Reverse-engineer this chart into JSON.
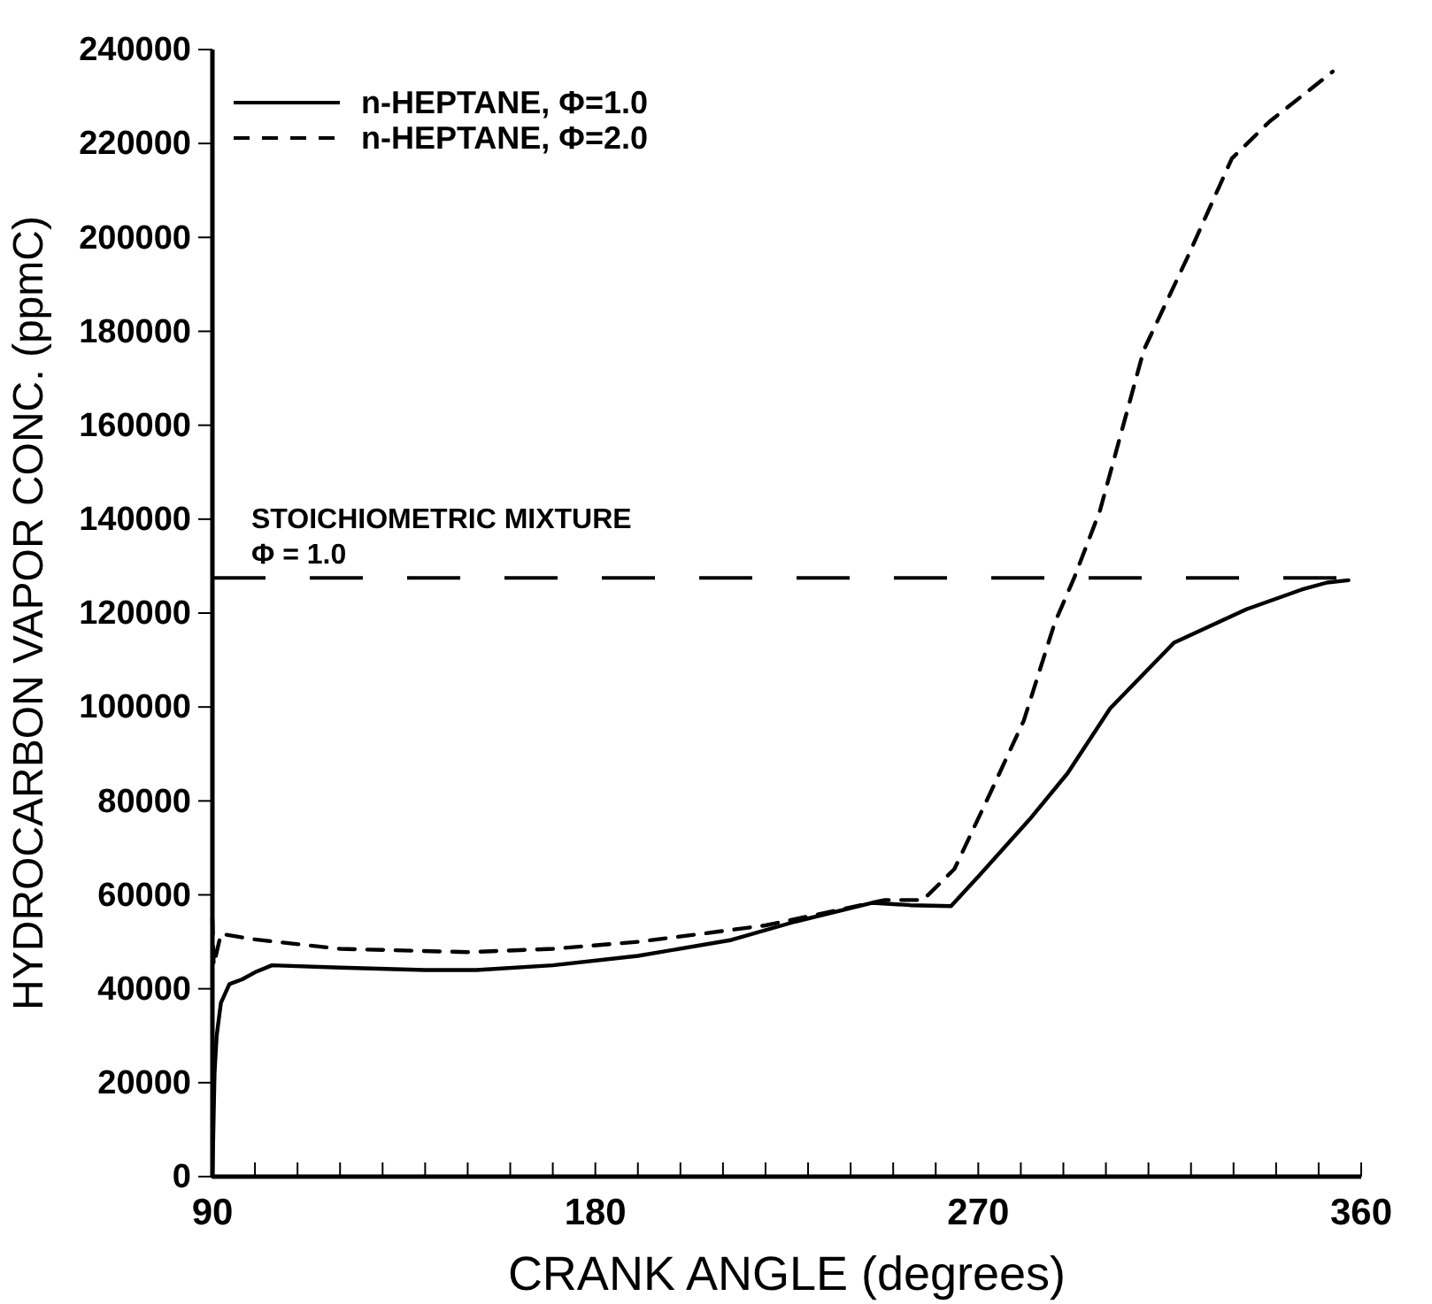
{
  "chart_data": {
    "type": "line",
    "xlabel": "CRANK ANGLE (degrees)",
    "ylabel": "HYDROCARBON VAPOR CONC. (ppmC)",
    "xlim": [
      90,
      360
    ],
    "xticks": [
      90,
      {
        "value": 100,
        "label": null
      },
      {
        "value": 110,
        "label": null
      },
      {
        "value": 120,
        "label": null
      },
      {
        "value": 130,
        "label": null
      },
      {
        "value": 140,
        "label": null
      },
      {
        "value": 150,
        "label": null
      },
      {
        "value": 160,
        "label": null
      },
      {
        "value": 170,
        "label": null
      },
      180,
      {
        "value": 190,
        "label": null
      },
      {
        "value": 200,
        "label": null
      },
      {
        "value": 210,
        "label": null
      },
      {
        "value": 220,
        "label": null
      },
      {
        "value": 230,
        "label": null
      },
      {
        "value": 240,
        "label": null
      },
      {
        "value": 250,
        "label": null
      },
      {
        "value": 260,
        "label": null
      },
      270,
      {
        "value": 280,
        "label": null
      },
      {
        "value": 290,
        "label": null
      },
      {
        "value": 300,
        "label": null
      },
      {
        "value": 310,
        "label": null
      },
      {
        "value": 320,
        "label": null
      },
      {
        "value": 330,
        "label": null
      },
      {
        "value": 340,
        "label": null
      },
      {
        "value": 350,
        "label": null
      },
      360
    ],
    "ylim": [
      0,
      240000
    ],
    "yticks": [
      0,
      20000,
      40000,
      60000,
      80000,
      100000,
      120000,
      140000,
      160000,
      180000,
      200000,
      220000,
      240000
    ],
    "legend": "top left",
    "grid": false,
    "series": [
      {
        "name": "n-HEPTANE, Φ=1.0",
        "color": "#000000",
        "line_style": "solid",
        "x": [
          90,
          90.5,
          91,
          92,
          94,
          97,
          100,
          104,
          120,
          140,
          152,
          170,
          190,
          212,
          227,
          245,
          254,
          263.6,
          270.3,
          282,
          291,
          301,
          316,
          333,
          346,
          352,
          357
        ],
        "values": [
          0,
          22000,
          30000,
          37000,
          41000,
          42000,
          43500,
          45000,
          44500,
          44000,
          44000,
          45000,
          47000,
          50400,
          54300,
          58300,
          57800,
          57600,
          64200,
          76000,
          85900,
          99700,
          113700,
          120800,
          125000,
          126500,
          127000
        ]
      },
      {
        "name": "n-HEPTANE, Φ=2.0",
        "color": "#000000",
        "line_style": "dashed",
        "x": [
          90,
          90.3,
          92,
          100,
          120,
          150,
          170,
          190,
          205,
          220,
          234.7,
          248,
          257,
          264.4,
          273.3,
          280.7,
          288,
          292.5,
          298.6,
          308.9,
          319.2,
          329.6,
          338.5,
          353.3
        ],
        "values": [
          55000,
          45000,
          51700,
          50500,
          48500,
          47800,
          48500,
          50000,
          51700,
          53500,
          56300,
          58900,
          58900,
          65500,
          82600,
          97100,
          118000,
          127400,
          141800,
          176000,
          195800,
          216800,
          224700,
          235300
        ]
      }
    ],
    "ref_lines": [
      {
        "axis": "y",
        "value": 127500,
        "label": "STOICHIOMETRIC MIXTURE",
        "color": "#000000",
        "line_style": "dashed"
      }
    ],
    "annotations": [
      "Φ = 1.0"
    ]
  }
}
